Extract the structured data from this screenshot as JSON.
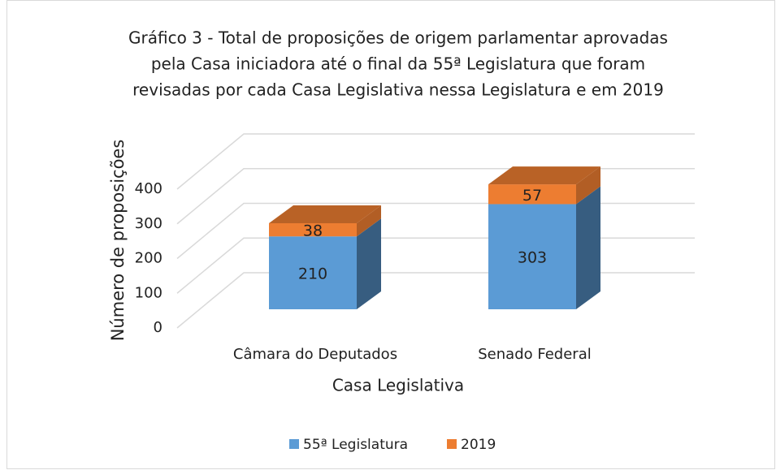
{
  "chart_data": {
    "type": "bar3d_stacked",
    "title": [
      "Gráfico 3 - Total de proposições de origem parlamentar aprovadas",
      "pela Casa iniciadora até o final da 55ª Legislatura que foram",
      "revisadas por cada Casa Legislativa nessa Legislatura e em 2019"
    ],
    "x_label": "Casa Legislativa",
    "y_label": "Número de proposições",
    "categories": [
      "Câmara do Deputados",
      "Senado Federal"
    ],
    "series": [
      {
        "name": "55ª Legislatura",
        "color": "#5b9bd5",
        "values": [
          210,
          303
        ]
      },
      {
        "name": "2019",
        "color": "#ed7d31",
        "values": [
          38,
          57
        ]
      }
    ],
    "ylim": [
      0,
      400
    ],
    "yticks": [
      0,
      100,
      200,
      300,
      400
    ],
    "grid": true,
    "legend": "bottom"
  }
}
